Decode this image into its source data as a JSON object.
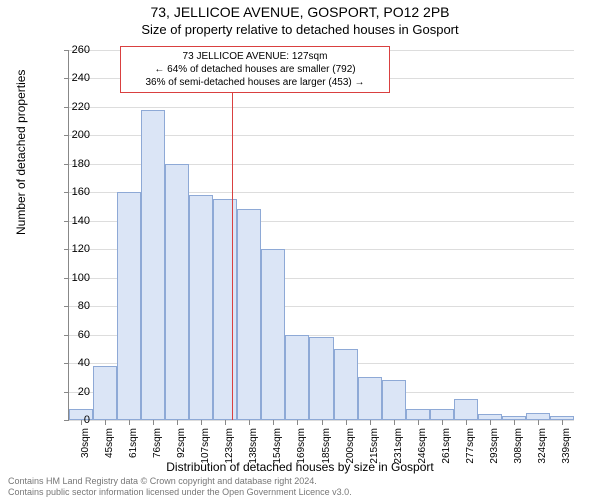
{
  "chart": {
    "type": "histogram",
    "main_title": "73, JELLICOE AVENUE, GOSPORT, PO12 2PB",
    "sub_title": "Size of property relative to detached houses in Gosport",
    "y_axis_label": "Number of detached properties",
    "x_axis_label": "Distribution of detached houses by size in Gosport",
    "ylim": [
      0,
      260
    ],
    "ytick_step": 20,
    "yticks": [
      0,
      20,
      40,
      60,
      80,
      100,
      120,
      140,
      160,
      180,
      200,
      220,
      240,
      260
    ],
    "x_categories": [
      "30sqm",
      "45sqm",
      "61sqm",
      "76sqm",
      "92sqm",
      "107sqm",
      "123sqm",
      "138sqm",
      "154sqm",
      "169sqm",
      "185sqm",
      "200sqm",
      "215sqm",
      "231sqm",
      "246sqm",
      "261sqm",
      "277sqm",
      "293sqm",
      "308sqm",
      "324sqm",
      "339sqm"
    ],
    "values": [
      8,
      38,
      160,
      218,
      180,
      158,
      155,
      148,
      120,
      60,
      58,
      50,
      30,
      28,
      8,
      8,
      15,
      4,
      3,
      5,
      3
    ],
    "bar_fill": "#dbe5f6",
    "bar_border": "#8ea9d6",
    "grid_color": "#dddddd",
    "axis_color": "#888888",
    "background": "#ffffff",
    "marker": {
      "value_sqm": 127,
      "line_color": "#d94040",
      "callout_border": "#d94040",
      "line1": "73 JELLICOE AVENUE: 127sqm",
      "line2": "← 64% of detached houses are smaller (792)",
      "line3": "36% of semi-detached houses are larger (453) →"
    },
    "font_family": "Arial, sans-serif",
    "title_fontsize": 14,
    "subtitle_fontsize": 13,
    "axis_label_fontsize": 12,
    "tick_fontsize": 11
  },
  "footer": {
    "line1": "Contains HM Land Registry data © Crown copyright and database right 2024.",
    "line2": "Contains public sector information licensed under the Open Government Licence v3.0."
  }
}
